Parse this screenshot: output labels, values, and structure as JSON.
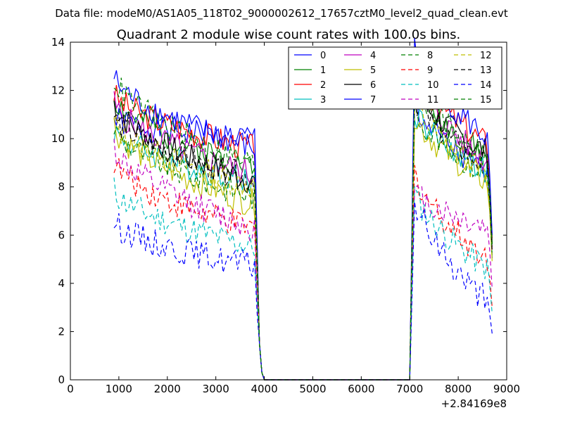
{
  "chart_data": {
    "type": "line",
    "suptitle": "Data file: modeM0/AS1A05_118T02_9000002612_17657cztM0_level2_quad_clean.evt",
    "title": "Quadrant 2 module wise count rates with 100.0s bins.",
    "xlabel": "",
    "ylabel": "",
    "x_offset_label": "+2.84169e8",
    "xlim": [
      0,
      9000
    ],
    "ylim": [
      0,
      14
    ],
    "xticks": [
      "0",
      "1000",
      "2000",
      "3000",
      "4000",
      "5000",
      "6000",
      "7000",
      "8000",
      "9000"
    ],
    "yticks": [
      "0",
      "2",
      "4",
      "6",
      "8",
      "10",
      "12",
      "14"
    ],
    "legend_position": "top-right",
    "gap": [
      4000,
      7000
    ],
    "series": [
      {
        "name": "0",
        "color": "#0000ff",
        "dash": "solid",
        "start": 10.8,
        "end": 10.0,
        "seg2_start": 11.5,
        "seg2_end": 8.4,
        "seed": 1
      },
      {
        "name": "1",
        "color": "#008000",
        "dash": "solid",
        "start": 11.8,
        "end": 8.8,
        "seg2_start": 12.4,
        "seg2_end": 9.2,
        "seed": 2
      },
      {
        "name": "2",
        "color": "#ff0000",
        "dash": "solid",
        "start": 11.9,
        "end": 9.6,
        "seg2_start": 12.8,
        "seg2_end": 9.8,
        "seed": 3
      },
      {
        "name": "3",
        "color": "#00bfbf",
        "dash": "solid",
        "start": 10.4,
        "end": 8.2,
        "seg2_start": 11.2,
        "seg2_end": 8.6,
        "seed": 4
      },
      {
        "name": "4",
        "color": "#bf00bf",
        "dash": "solid",
        "start": 11.5,
        "end": 8.5,
        "seg2_start": 12.5,
        "seg2_end": 9.0,
        "seed": 5
      },
      {
        "name": "5",
        "color": "#bfbf00",
        "dash": "solid",
        "start": 10.6,
        "end": 7.3,
        "seg2_start": 11.0,
        "seg2_end": 8.2,
        "seed": 6
      },
      {
        "name": "6",
        "color": "#000000",
        "dash": "solid",
        "start": 11.5,
        "end": 8.2,
        "seg2_start": 12.0,
        "seg2_end": 9.4,
        "seed": 7
      },
      {
        "name": "7",
        "color": "#0000ff",
        "dash": "solid",
        "start": 12.6,
        "end": 9.6,
        "seg2_start": 13.7,
        "seg2_end": 10.0,
        "seed": 8
      },
      {
        "name": "8",
        "color": "#008000",
        "dash": "dashed",
        "start": 10.5,
        "end": 7.6,
        "seg2_start": 11.3,
        "seg2_end": 8.5,
        "seed": 9
      },
      {
        "name": "9",
        "color": "#ff0000",
        "dash": "dashed",
        "start": 9.1,
        "end": 6.2,
        "seg2_start": 8.6,
        "seg2_end": 5.0,
        "seed": 10
      },
      {
        "name": "10",
        "color": "#00bfbf",
        "dash": "dashed",
        "start": 7.9,
        "end": 5.5,
        "seg2_start": 7.8,
        "seg2_end": 4.6,
        "seed": 11
      },
      {
        "name": "11",
        "color": "#bf00bf",
        "dash": "dashed",
        "start": 9.7,
        "end": 6.3,
        "seg2_start": 7.8,
        "seg2_end": 6.3,
        "seed": 12
      },
      {
        "name": "12",
        "color": "#bfbf00",
        "dash": "dashed",
        "start": 10.7,
        "end": 8.0,
        "seg2_start": 11.6,
        "seg2_end": 8.4,
        "seed": 13
      },
      {
        "name": "13",
        "color": "#000000",
        "dash": "dashed",
        "start": 11.0,
        "end": 8.3,
        "seg2_start": 11.8,
        "seg2_end": 8.8,
        "seed": 14
      },
      {
        "name": "14",
        "color": "#0000ff",
        "dash": "dashed",
        "start": 6.6,
        "end": 4.7,
        "seg2_start": 7.5,
        "seg2_end": 3.2,
        "seed": 15
      },
      {
        "name": "15",
        "color": "#008000",
        "dash": "dashed",
        "start": 12.6,
        "end": 8.9,
        "seg2_start": 12.4,
        "seg2_end": 9.3,
        "seed": 16
      }
    ]
  }
}
